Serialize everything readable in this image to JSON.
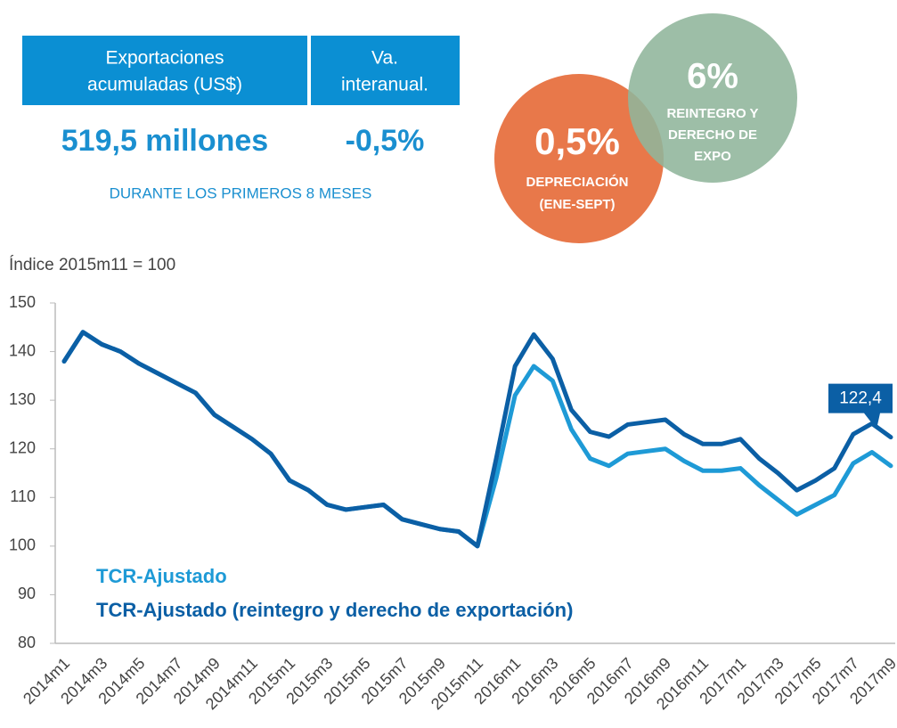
{
  "header": {
    "cols": [
      {
        "label": [
          "Exportaciones",
          "acumuladas (US$)"
        ],
        "value": "519,5 millones"
      },
      {
        "label": [
          "Va.",
          "interanual."
        ],
        "value": "-0,5%"
      }
    ],
    "note": "DURANTE LOS PRIMEROS 8 MESES"
  },
  "badges": [
    {
      "value": "0,5%",
      "lines": [
        "DEPRECIACIÓN",
        "(ENE-SEPT)"
      ]
    },
    {
      "value": "6%",
      "lines": [
        "REINTEGRO Y",
        "DERECHO DE",
        "EXPO"
      ]
    }
  ],
  "chart_data": {
    "type": "line",
    "ylabel": "Índice 2015m11 = 100",
    "categories": [
      "2014m1",
      null,
      "2014m3",
      null,
      "2014m5",
      null,
      "2014m7",
      null,
      "2014m9",
      null,
      "2014m11",
      null,
      "2015m1",
      null,
      "2015m3",
      null,
      "2015m5",
      null,
      "2015m7",
      null,
      "2015m9",
      null,
      "2015m11",
      null,
      "2016m1",
      null,
      "2016m3",
      null,
      "2016m5",
      null,
      "2016m7",
      null,
      "2016m9",
      null,
      "2016m11",
      null,
      "2017m1",
      null,
      "2017m3",
      null,
      "2017m5",
      null,
      "2017m7",
      null,
      "2017m9"
    ],
    "series": [
      {
        "name": "TCR-Ajustado",
        "color": "#1e9ad6",
        "values": [
          138,
          144,
          141.5,
          140,
          137.5,
          135.5,
          133.5,
          131.5,
          127,
          124.5,
          122,
          119,
          113.5,
          111.5,
          108.5,
          107.5,
          108,
          108.5,
          105.5,
          104.5,
          103.5,
          103,
          100,
          114,
          131,
          137,
          134,
          124,
          118,
          116.5,
          119,
          119.5,
          120,
          117.5,
          115.5,
          115.5,
          116,
          112.5,
          109.5,
          106.5,
          108.5,
          110.5,
          117,
          119.3,
          116.5
        ]
      },
      {
        "name": "TCR-Ajustado (reintegro y derecho de exportación)",
        "color": "#0b5fa5",
        "values": [
          138,
          144,
          141.5,
          140,
          137.5,
          135.5,
          133.5,
          131.5,
          127,
          124.5,
          122,
          119,
          113.5,
          111.5,
          108.5,
          107.5,
          108,
          108.5,
          105.5,
          104.5,
          103.5,
          103,
          100,
          118,
          137,
          143.5,
          138.5,
          128,
          123.5,
          122.5,
          125,
          125.5,
          126,
          123,
          121,
          121,
          122,
          118,
          115,
          111.5,
          113.5,
          116,
          123,
          125.2,
          122.4
        ],
        "value_labels": [
          null,
          null,
          null,
          null,
          null,
          null,
          null,
          null,
          null,
          null,
          null,
          null,
          null,
          null,
          null,
          null,
          null,
          null,
          null,
          null,
          null,
          null,
          null,
          null,
          null,
          null,
          null,
          null,
          null,
          null,
          null,
          null,
          null,
          null,
          null,
          null,
          null,
          null,
          null,
          null,
          null,
          null,
          null,
          null,
          "122,4"
        ]
      }
    ],
    "ylim": [
      80,
      150
    ],
    "yticks": [
      80,
      90,
      100,
      110,
      120,
      130,
      140,
      150
    ],
    "grid": false
  }
}
